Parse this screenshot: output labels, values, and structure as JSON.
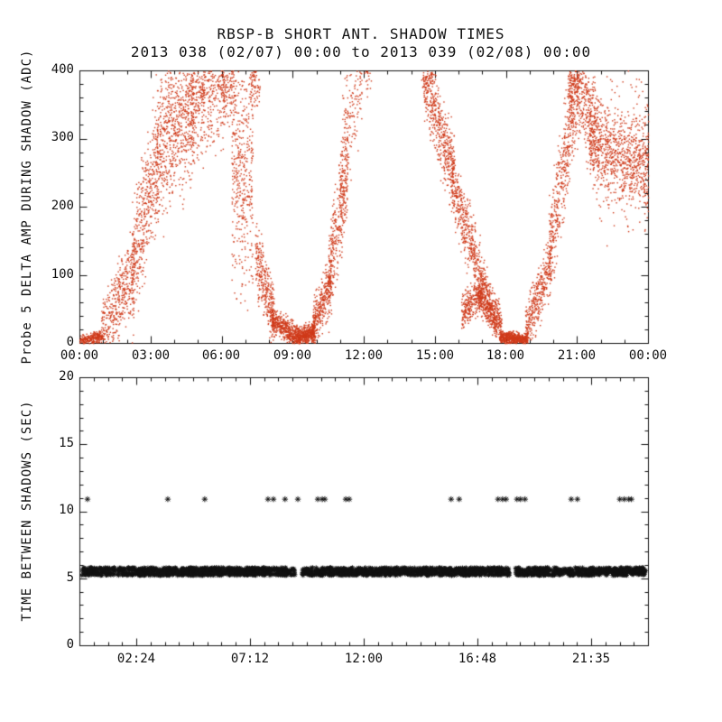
{
  "figure": {
    "background": "#ffffff",
    "axis_color": "#111111"
  },
  "chart_data": [
    {
      "type": "scatter",
      "title": "RBSP-B SHORT ANT. SHADOW TIMES",
      "subtitle": "2013 038 (02/07) 00:00 to 2013 039 (02/08) 00:00",
      "ylabel": "Probe 5 DELTA AMP DURING SHADOW (ADC)",
      "xlabel": "",
      "marker": "dot",
      "marker_color": "#cf3a1a",
      "xlim": [
        0,
        24
      ],
      "ylim": [
        0,
        400
      ],
      "xticks": [
        0,
        3,
        6,
        9,
        12,
        15,
        18,
        21,
        24
      ],
      "xtick_labels": [
        "00:00",
        "03:00",
        "06:00",
        "09:00",
        "12:00",
        "15:00",
        "18:00",
        "21:00",
        "00:00"
      ],
      "xminor_step": 1,
      "yticks": [
        0,
        100,
        200,
        300,
        400
      ],
      "ytick_labels": [
        "0",
        "100",
        "200",
        "300",
        "400"
      ],
      "yminor_step": 20,
      "grid": false,
      "segments": [
        {
          "t0": 0.0,
          "t1": 1.0,
          "y0": 2,
          "y1": 12,
          "s": 8,
          "n": 260
        },
        {
          "t0": 0.9,
          "t1": 2.3,
          "y0": 15,
          "y1": 110,
          "s": 50,
          "n": 420
        },
        {
          "t0": 2.2,
          "t1": 3.3,
          "y0": 110,
          "y1": 270,
          "s": 90,
          "n": 450
        },
        {
          "t0": 3.2,
          "t1": 4.8,
          "y0": 280,
          "y1": 360,
          "s": 110,
          "n": 750
        },
        {
          "t0": 4.7,
          "t1": 6.1,
          "y0": 350,
          "y1": 395,
          "s": 90,
          "n": 520
        },
        {
          "t0": 6.0,
          "t1": 6.6,
          "y0": 390,
          "y1": 395,
          "s": 60,
          "n": 180
        },
        {
          "t0": 6.4,
          "t1": 7.3,
          "y0": 250,
          "y1": 250,
          "s": 160,
          "n": 420
        },
        {
          "t0": 7.2,
          "t1": 7.6,
          "y0": 380,
          "y1": 390,
          "s": 40,
          "n": 90
        },
        {
          "t0": 7.4,
          "t1": 8.2,
          "y0": 130,
          "y1": 40,
          "s": 45,
          "n": 320
        },
        {
          "t0": 8.1,
          "t1": 9.3,
          "y0": 35,
          "y1": 6,
          "s": 18,
          "n": 520
        },
        {
          "t0": 9.2,
          "t1": 9.9,
          "y0": 6,
          "y1": 18,
          "s": 14,
          "n": 420
        },
        {
          "t0": 9.8,
          "t1": 10.6,
          "y0": 20,
          "y1": 90,
          "s": 35,
          "n": 360
        },
        {
          "t0": 10.5,
          "t1": 11.3,
          "y0": 100,
          "y1": 260,
          "s": 70,
          "n": 380
        },
        {
          "t0": 11.0,
          "t1": 11.9,
          "y0": 280,
          "y1": 390,
          "s": 80,
          "n": 160
        },
        {
          "t0": 11.8,
          "t1": 12.3,
          "y0": 395,
          "y1": 400,
          "s": 30,
          "n": 40
        },
        {
          "t0": 14.4,
          "t1": 14.9,
          "y0": 400,
          "y1": 390,
          "s": 40,
          "n": 60
        },
        {
          "t0": 14.5,
          "t1": 15.8,
          "y0": 395,
          "y1": 245,
          "s": 55,
          "n": 520
        },
        {
          "t0": 15.7,
          "t1": 16.9,
          "y0": 235,
          "y1": 105,
          "s": 45,
          "n": 420
        },
        {
          "t0": 16.1,
          "t1": 17.0,
          "y0": 45,
          "y1": 75,
          "s": 25,
          "n": 260
        },
        {
          "t0": 16.8,
          "t1": 17.6,
          "y0": 70,
          "y1": 25,
          "s": 20,
          "n": 260
        },
        {
          "t0": 16.9,
          "t1": 17.8,
          "y0": 100,
          "y1": 25,
          "s": 30,
          "n": 300
        },
        {
          "t0": 17.7,
          "t1": 18.9,
          "y0": 9,
          "y1": 5,
          "s": 9,
          "n": 560
        },
        {
          "t0": 18.8,
          "t1": 19.9,
          "y0": 15,
          "y1": 120,
          "s": 40,
          "n": 380
        },
        {
          "t0": 19.8,
          "t1": 21.0,
          "y0": 140,
          "y1": 370,
          "s": 70,
          "n": 460
        },
        {
          "t0": 20.6,
          "t1": 21.1,
          "y0": 380,
          "y1": 395,
          "s": 60,
          "n": 200
        },
        {
          "t0": 21.0,
          "t1": 21.9,
          "y0": 385,
          "y1": 300,
          "s": 75,
          "n": 330
        },
        {
          "t0": 21.5,
          "t1": 24.0,
          "y0": 300,
          "y1": 255,
          "s": 55,
          "n": 700
        },
        {
          "t0": 21.8,
          "t1": 24.0,
          "y0": 270,
          "y1": 280,
          "s": 110,
          "n": 260
        }
      ]
    },
    {
      "type": "scatter",
      "title": "",
      "ylabel": "TIME BETWEEN SHADOWS (SEC)",
      "xlabel": "",
      "marker": "asterisk",
      "marker_color": "#111111",
      "xlim": [
        0,
        24
      ],
      "ylim": [
        0,
        20
      ],
      "xticks": [
        2.4,
        7.2,
        12,
        16.8,
        21.583
      ],
      "xtick_labels": [
        "02:24",
        "07:12",
        "12:00",
        "16:48",
        "21:35"
      ],
      "xminor_step": 0.6,
      "yticks": [
        0,
        5,
        10,
        15,
        20
      ],
      "ytick_labels": [
        "0",
        "5",
        "10",
        "15",
        "20"
      ],
      "yminor_step": 1,
      "grid": false,
      "band": {
        "y": 5.5,
        "t0": 0.1,
        "t1": 23.9,
        "jitter": 0.3,
        "n": 2300,
        "gaps": [
          [
            9.1,
            9.4
          ],
          [
            18.15,
            18.4
          ]
        ]
      },
      "upper_points": {
        "y": 10.9,
        "times": [
          0.34,
          3.73,
          5.29,
          7.96,
          8.19,
          8.68,
          9.22,
          10.06,
          10.25,
          10.36,
          11.24,
          11.39,
          15.69,
          16.03,
          17.67,
          17.86,
          18.01,
          18.47,
          18.62,
          18.81,
          20.76,
          21.02,
          22.81,
          23.0,
          23.19,
          23.3
        ]
      }
    }
  ]
}
